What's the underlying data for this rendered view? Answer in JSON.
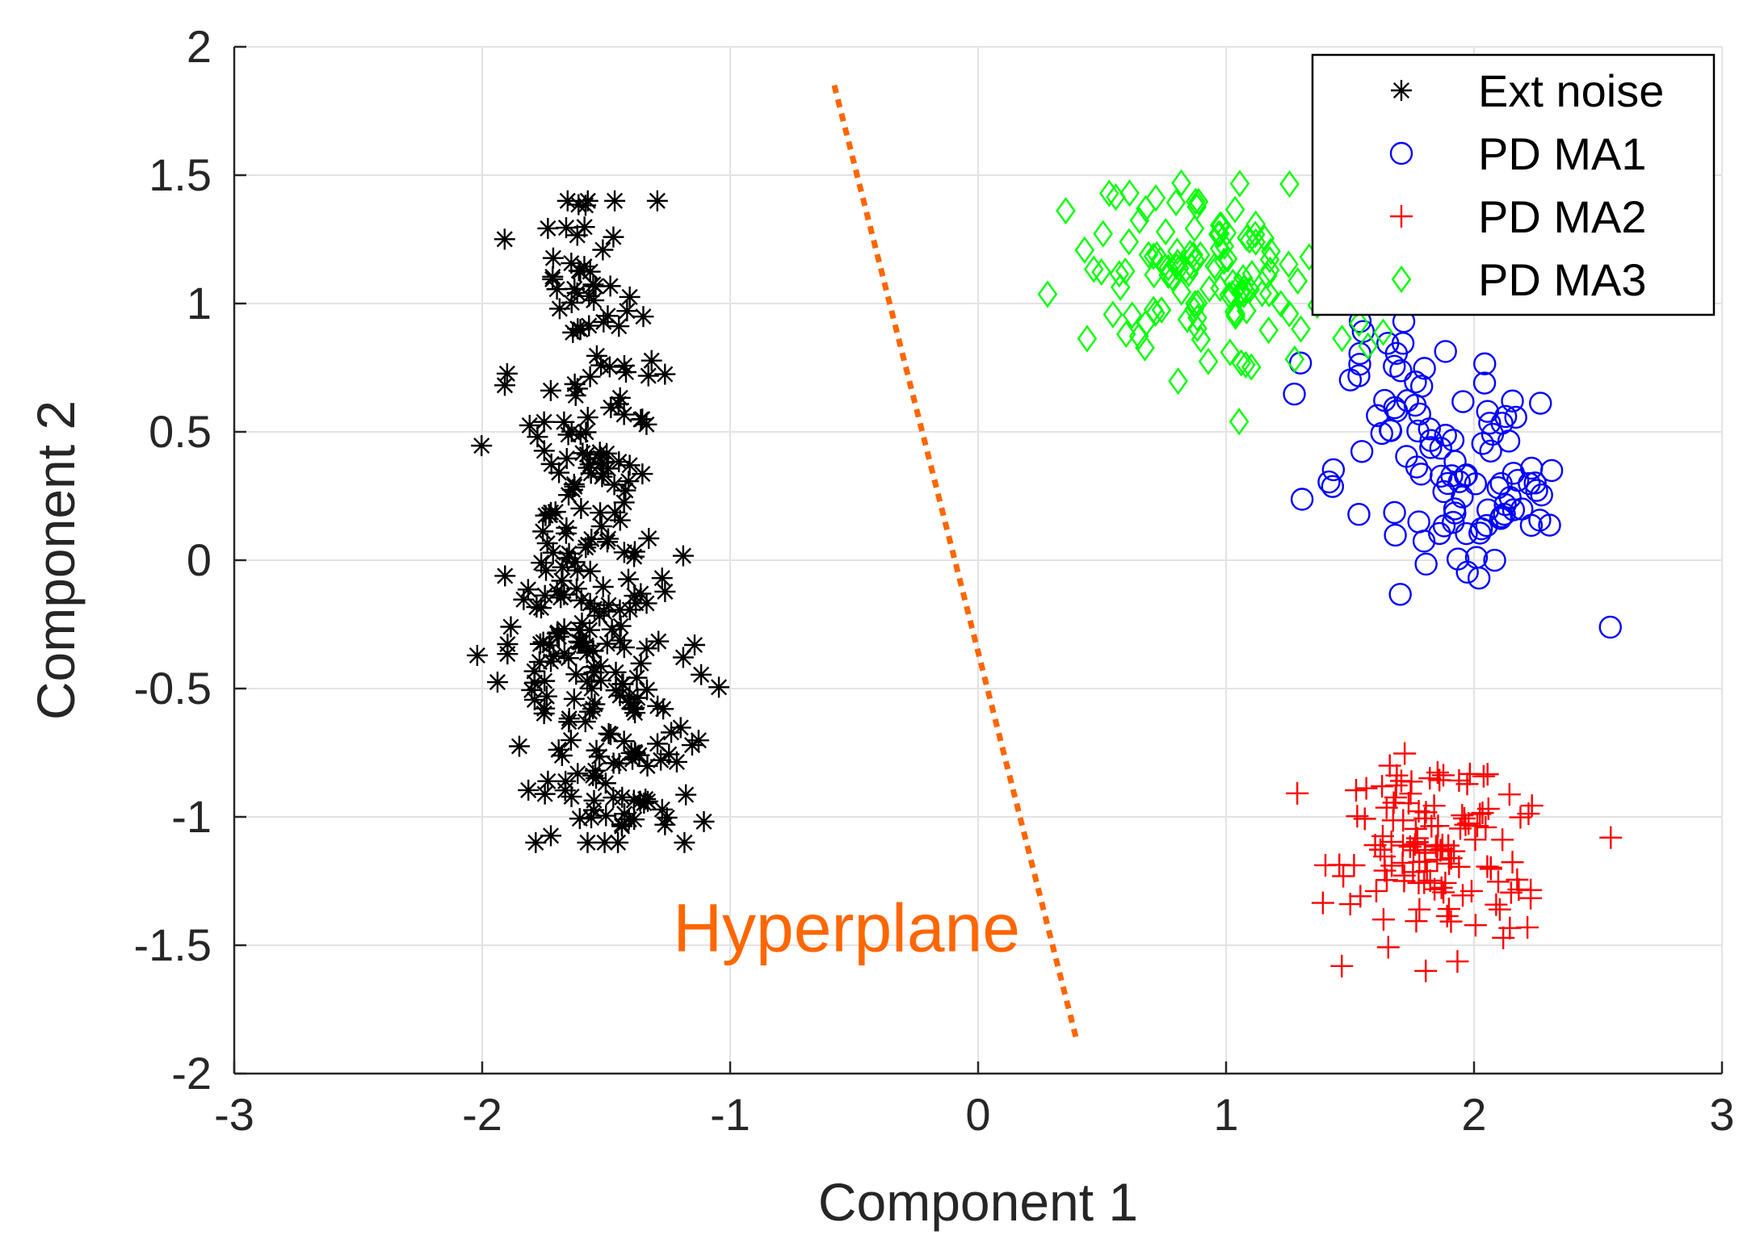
{
  "chart_data": {
    "type": "scatter",
    "title": "",
    "xlabel": "Component 1",
    "ylabel": "Component 2",
    "xlim": [
      -3,
      3
    ],
    "ylim": [
      -2,
      2
    ],
    "xticks": [
      -3,
      -2,
      -1,
      0,
      1,
      2,
      3
    ],
    "yticks": [
      -2,
      -1.5,
      -1,
      -0.5,
      0,
      0.5,
      1,
      1.5,
      2
    ],
    "xtick_labels": [
      "-3",
      "-2",
      "-1",
      "0",
      "1",
      "2",
      "3"
    ],
    "ytick_labels": [
      "-2",
      "-1.5",
      "-1",
      "-0.5",
      "0",
      "0.5",
      "1",
      "1.5",
      "2"
    ],
    "grid": true,
    "legend_position": "top-right",
    "series": [
      {
        "name": "Ext noise",
        "marker": "asterisk",
        "color": "#000000",
        "count": 300,
        "x_range": [
          -2.02,
          -1.02
        ],
        "y_range": [
          -1.1,
          1.4
        ]
      },
      {
        "name": "PD MA1",
        "marker": "circle",
        "color": "#0000ff",
        "count": 110,
        "x_range": [
          0.92,
          2.66
        ],
        "y_range": [
          -0.27,
          0.93
        ]
      },
      {
        "name": "PD MA2",
        "marker": "plus",
        "color": "#ff0000",
        "count": 130,
        "x_range": [
          1.2,
          2.58
        ],
        "y_range": [
          -1.6,
          -0.66
        ]
      },
      {
        "name": "PD MA3",
        "marker": "diamond",
        "color": "#00ff00",
        "count": 130,
        "x_range": [
          0.28,
          1.78
        ],
        "y_range": [
          0.54,
          1.65
        ]
      }
    ],
    "annotations": [
      {
        "text": "Hyperplane",
        "color": "#ff6600",
        "x": -1.23,
        "y": -1.43
      }
    ],
    "hyperplane": {
      "color": "#ff6600",
      "style": "dotted",
      "x": [
        -0.58,
        0.4
      ],
      "y": [
        1.85,
        -1.88
      ]
    }
  }
}
